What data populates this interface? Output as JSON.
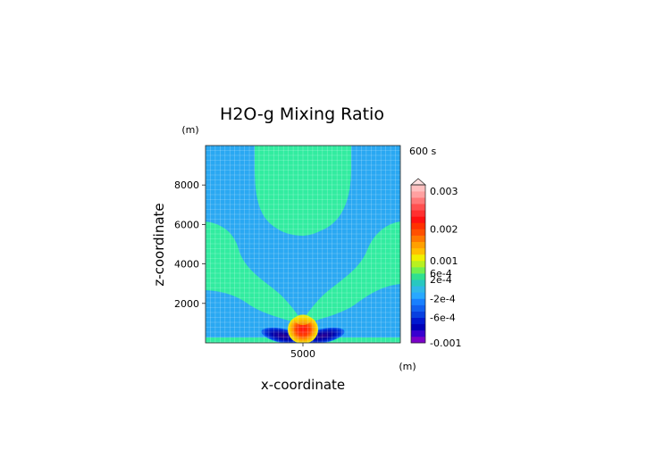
{
  "chart_data": {
    "type": "heatmap",
    "title": "H2O-g Mixing Ratio",
    "xlabel": "x-coordinate",
    "ylabel": "z-coordinate",
    "x_unit": "(m)",
    "y_unit": "(m)",
    "time_label": "600 s",
    "xlim": [
      0,
      10000
    ],
    "ylim": [
      0,
      10000
    ],
    "x_ticks": [
      {
        "value": 5000,
        "label": "5000"
      }
    ],
    "y_ticks": [
      {
        "value": 2000,
        "label": "2000"
      },
      {
        "value": 4000,
        "label": "4000"
      },
      {
        "value": 6000,
        "label": "6000"
      },
      {
        "value": 8000,
        "label": "8000"
      }
    ],
    "grid": true,
    "colorbar": {
      "position": "right",
      "labels": [
        "0.003",
        "0.002",
        "0.001",
        "6e-4",
        "2e-4",
        "-2e-4",
        "-6e-4",
        "-0.001"
      ],
      "colors": [
        "#7a00c8",
        "#3800d0",
        "#0000b8",
        "#0018d0",
        "#0840e0",
        "#1060f0",
        "#1880ff",
        "#28a8ff",
        "#30b8e8",
        "#28c8c0",
        "#30e090",
        "#70f050",
        "#b8f020",
        "#f0f000",
        "#ffc000",
        "#ffa000",
        "#ff7800",
        "#ff5000",
        "#ff3000",
        "#ff1010",
        "#ff3030",
        "#ff5050",
        "#ff7878",
        "#ffa0a0",
        "#ffc0c0"
      ],
      "label_levels": [
        24,
        18,
        13,
        11,
        10,
        7,
        4,
        0
      ]
    },
    "background_color": "#2aa8f2",
    "regions": {
      "upper_plume_color": "#32eca0",
      "near_surface_strip_color": "#32eca0",
      "anomaly_positive_colors": [
        "#ff2020",
        "#ff8000",
        "#f0f000"
      ],
      "anomaly_negative_colors": [
        "#1070f8",
        "#0030d0",
        "#0000a0",
        "#300090"
      ]
    }
  }
}
